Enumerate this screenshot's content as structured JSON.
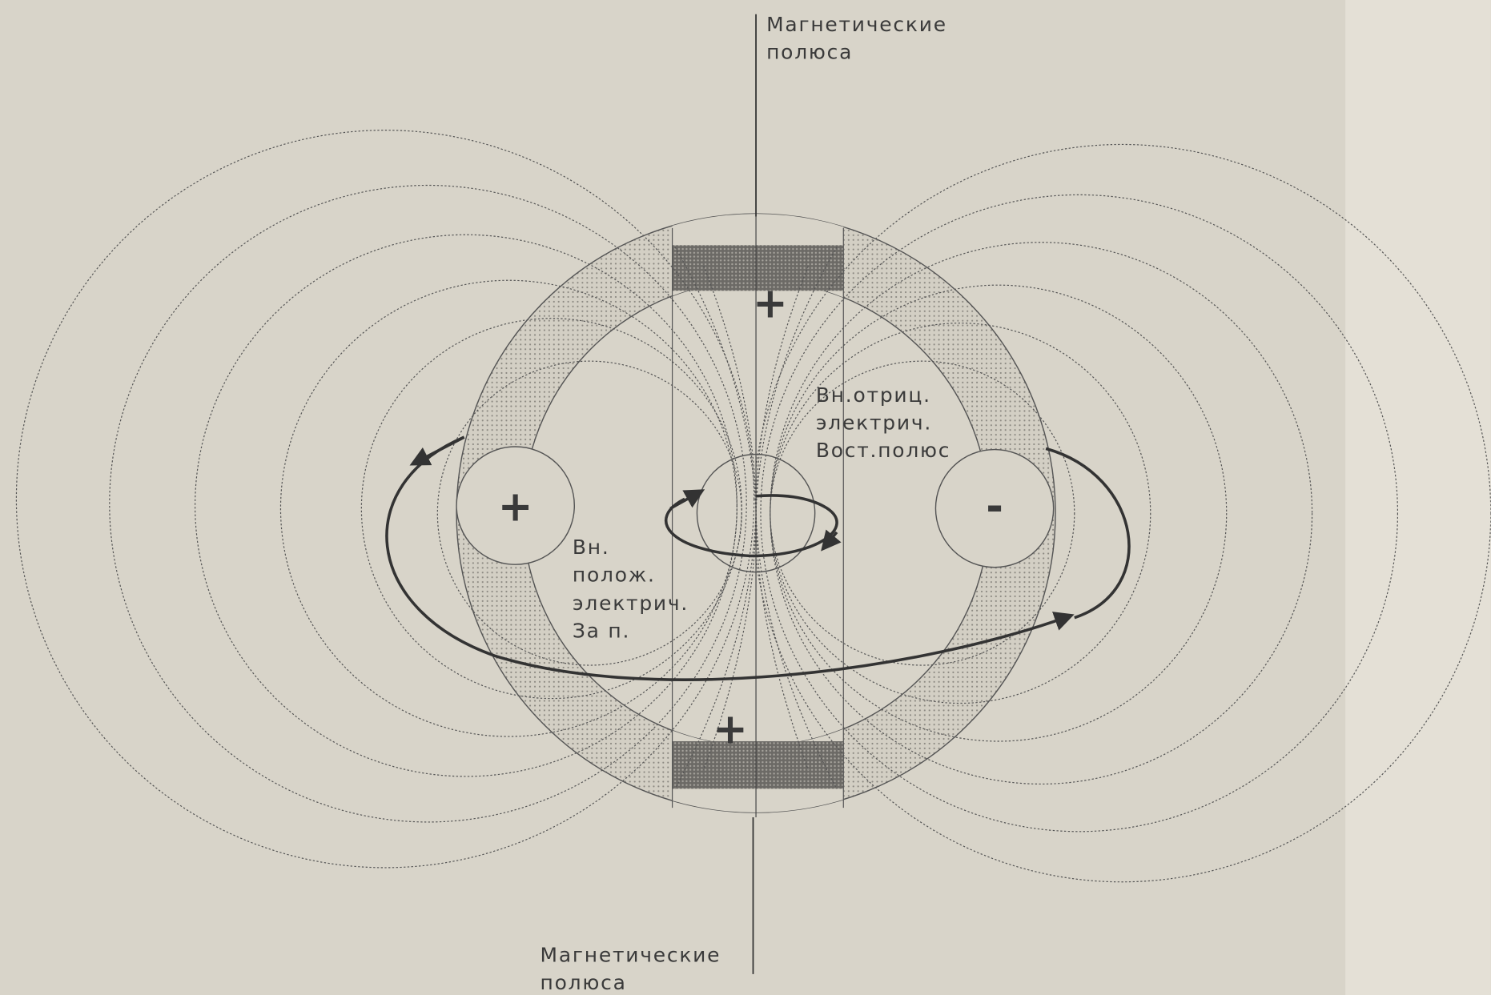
{
  "labels": {
    "top_pole": [
      "Магнетические",
      "полюса"
    ],
    "bottom_pole": [
      "Магнетические",
      "полюса"
    ],
    "negative": [
      "Вн.отриц.",
      "электрич.",
      "Вост.полюс"
    ],
    "positive": [
      "Вн.",
      "полож.",
      "электрич.",
      "За п."
    ]
  },
  "signs": {
    "top": "+",
    "bottom": "+",
    "left": "+",
    "right": "-"
  }
}
